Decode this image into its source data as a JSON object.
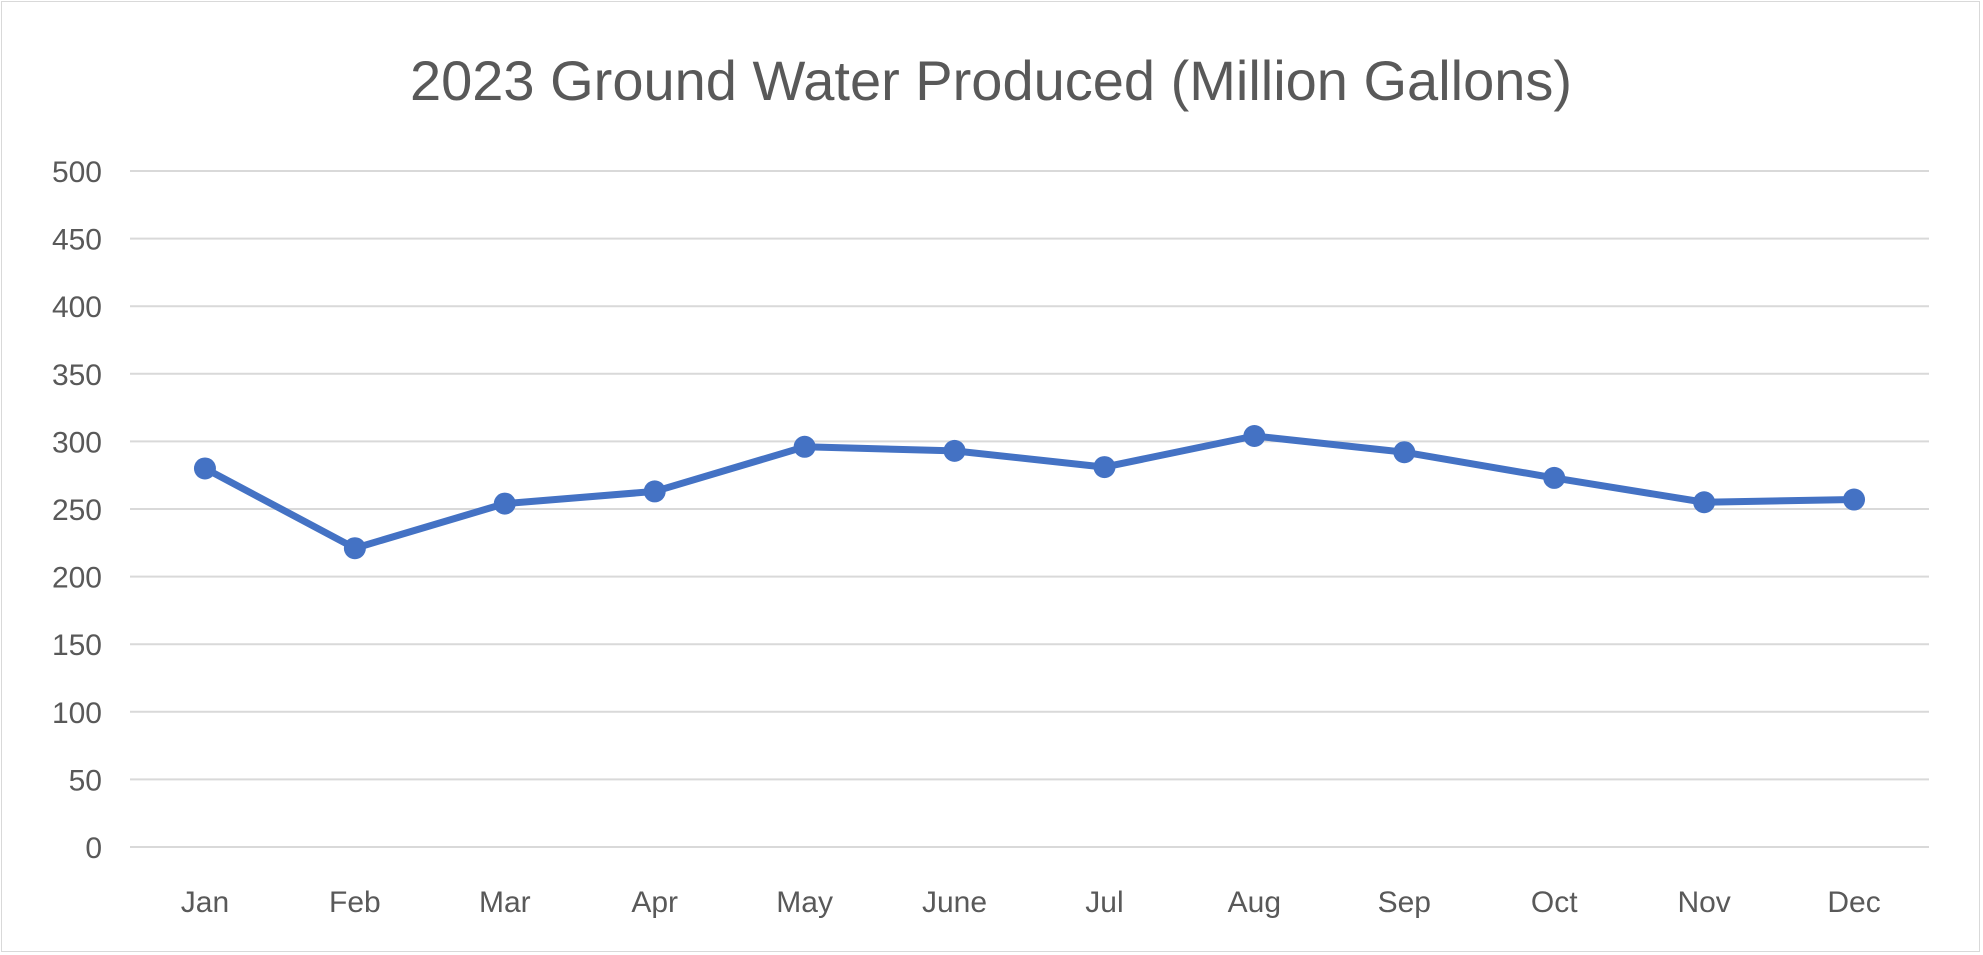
{
  "chart_data": {
    "type": "line",
    "title": "2023 Ground Water Produced (Million Gallons)",
    "xlabel": "",
    "ylabel": "",
    "categories": [
      "Jan",
      "Feb",
      "Mar",
      "Apr",
      "May",
      "June",
      "Jul",
      "Aug",
      "Sep",
      "Oct",
      "Nov",
      "Dec"
    ],
    "series": [
      {
        "values": [
          280,
          221,
          254,
          263,
          296,
          293,
          281,
          304,
          292,
          273,
          255,
          257
        ],
        "color": "#4472C4"
      }
    ],
    "ylim": [
      0,
      500
    ],
    "yticks": [
      0,
      50,
      100,
      150,
      200,
      250,
      300,
      350,
      400,
      450,
      500
    ],
    "grid": true,
    "legend": "none",
    "colors": {
      "line": "#4472C4",
      "grid": "#d9d9d9",
      "text": "#595959"
    }
  }
}
